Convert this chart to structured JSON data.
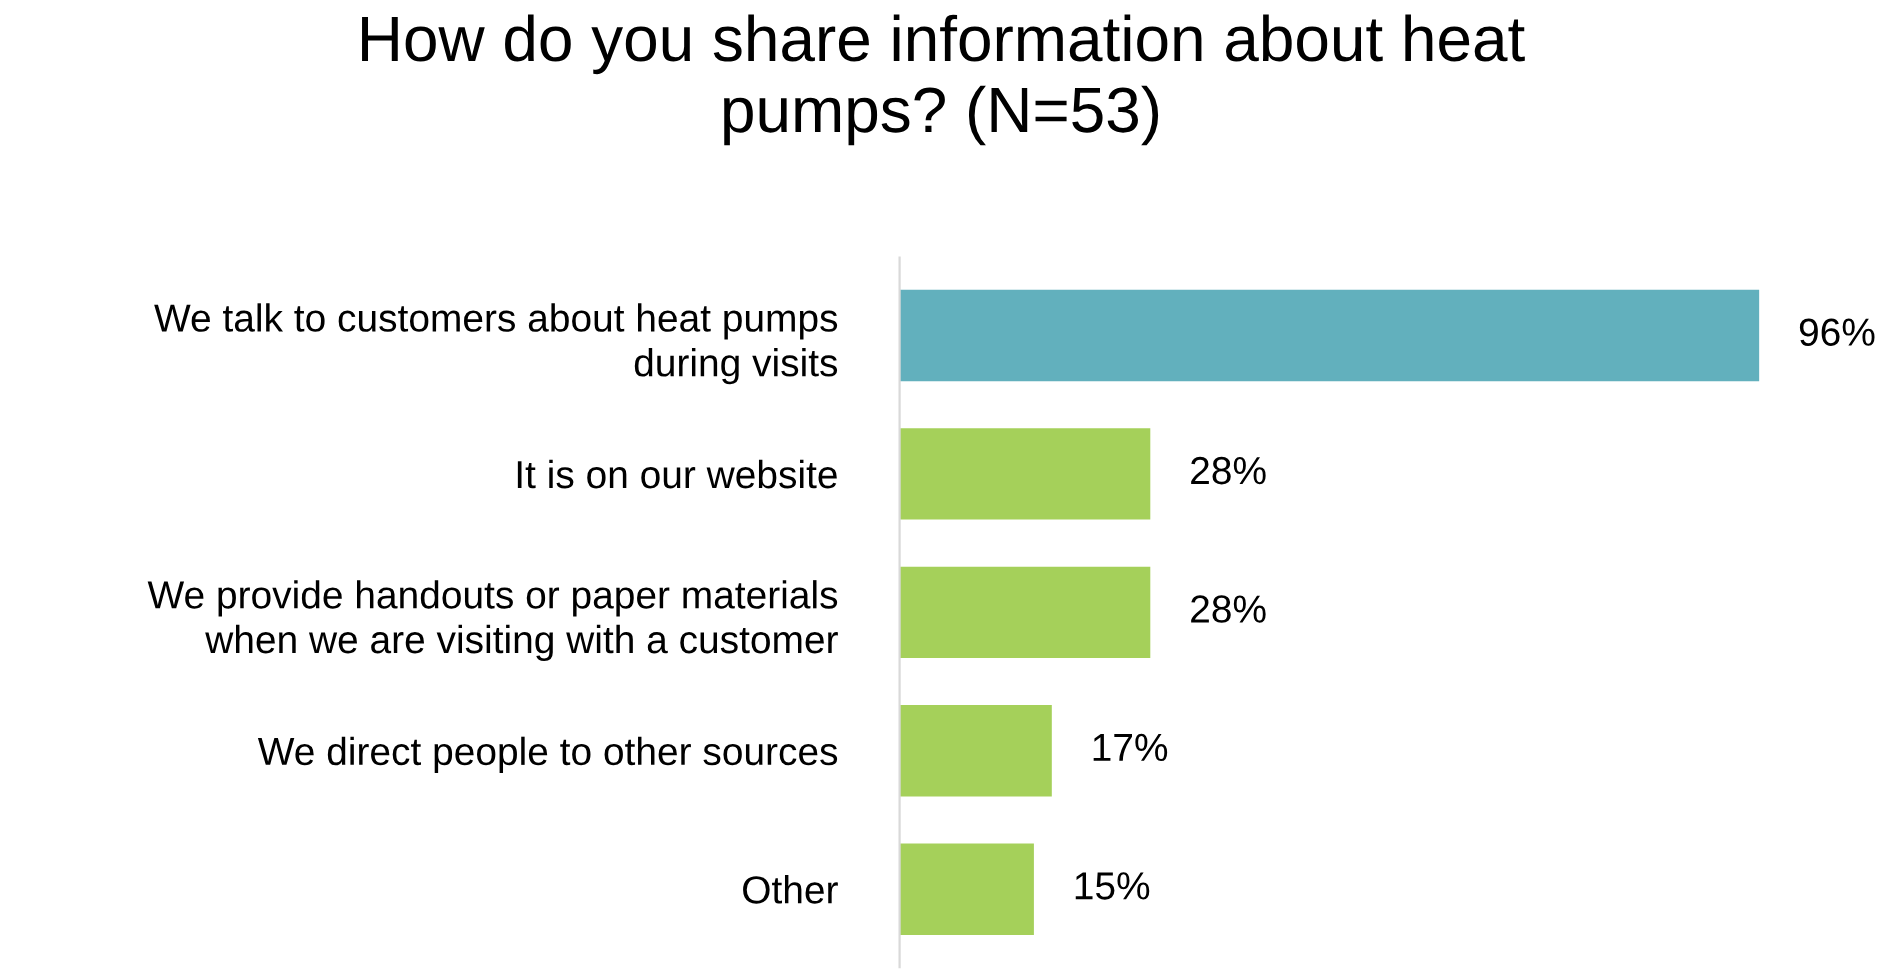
{
  "chart_data": {
    "type": "bar",
    "orientation": "horizontal",
    "title": "How do you share information about heat\npumps? (N=53)",
    "categories": [
      "We talk to customers about heat pumps\nduring visits",
      "It is on our website",
      "We provide handouts or paper materials\nwhen we are visiting with a customer",
      "We direct people to other sources",
      "Other"
    ],
    "values": [
      96,
      28,
      28,
      17,
      15
    ],
    "colors": [
      "#62b0bd",
      "#a5d05a",
      "#a5d05a",
      "#a5d05a",
      "#a5d05a"
    ],
    "value_labels": [
      "96%",
      "28%",
      "28%",
      "17%",
      "15%"
    ],
    "grid": false,
    "legend": false
  }
}
